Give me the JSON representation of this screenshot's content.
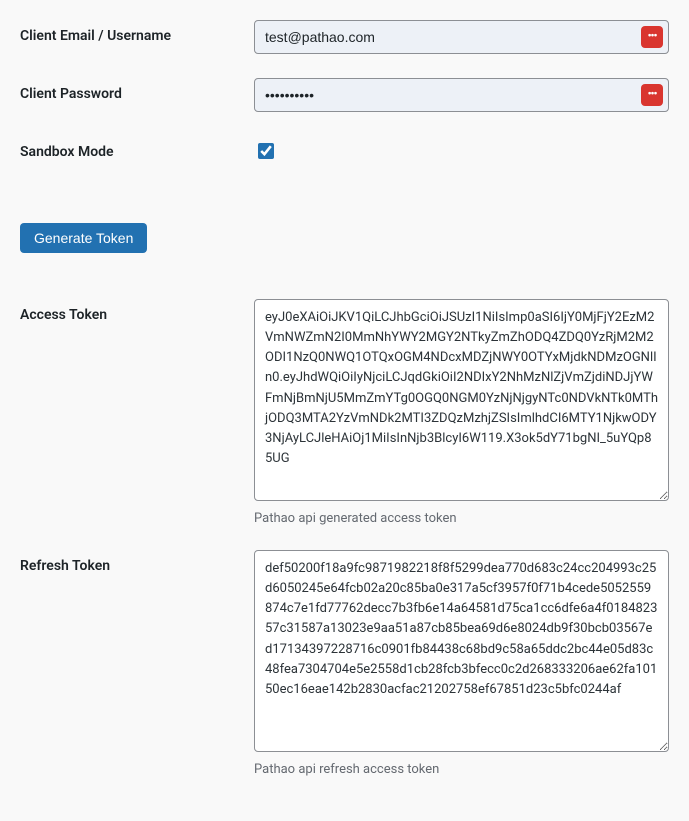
{
  "fields": {
    "client_email": {
      "label": "Client Email / Username",
      "value": "test@pathao.com"
    },
    "client_password": {
      "label": "Client Password",
      "value": "••••••••••"
    },
    "sandbox_mode": {
      "label": "Sandbox Mode",
      "checked": true
    },
    "access_token": {
      "label": "Access Token",
      "value": "eyJ0eXAiOiJKV1QiLCJhbGciOiJSUzI1NiIsImp0aSI6IjY0MjFjY2EzM2VmNWZmN2I0MmNhYWY2MGY2NTkyZmZhODQ4ZDQ0YzRjM2M2ODI1NzQ0NWQ1OTQxOGM4NDcxMDZjNWY0OTYxMjdkNDMzOGNlIn0.eyJhdWQiOiIyNjciLCJqdGkiOiI2NDIxY2NhMzNlZjVmZjdiNDJjYWFmNjBmNjU5MmZmYTg0OGQ0NGM0YzNjNjgyNTc0NDVkNTk0MThjODQ3MTA2YzVmNDk2MTI3ZDQzMzhjZSIsImlhdCI6MTY1NjkwODY3NjAyLCJleHAiOj1MiIsInNjb3BlcyI6W119.X3ok5dY71bgNI_5uYQp85UG",
      "help": "Pathao api generated access token"
    },
    "refresh_token": {
      "label": "Refresh Token",
      "value": "def50200f18a9fc9871982218f8f5299dea770d683c24cc204993c25d6050245e64fcb02a20c85ba0e317a5cf3957f0f71b4cede5052559874c7e1fd77762decc7b3fb6e14a64581d75ca1cc6dfe6a4f018482357c31587a13023e9aa51a87cb85bea69d6e8024db9f30bcb03567ed17134397228716c0901fb84438c68bd9c58a65ddc2bc44e05d83c48fea7304704e5e2558d1cb28fcb3bfecc0c2d268333206ae62fa10150ec16eae142b2830acfac21202758ef67851d23c5bfc0244af",
      "help": "Pathao api refresh access token"
    }
  },
  "buttons": {
    "generate_token": "Generate Token"
  },
  "colors": {
    "primary": "#2271b1",
    "icon_bg": "#d9352f",
    "border": "#8c8f94",
    "text": "#1d2327",
    "help": "#646970",
    "input_bg": "#edf1f7"
  }
}
